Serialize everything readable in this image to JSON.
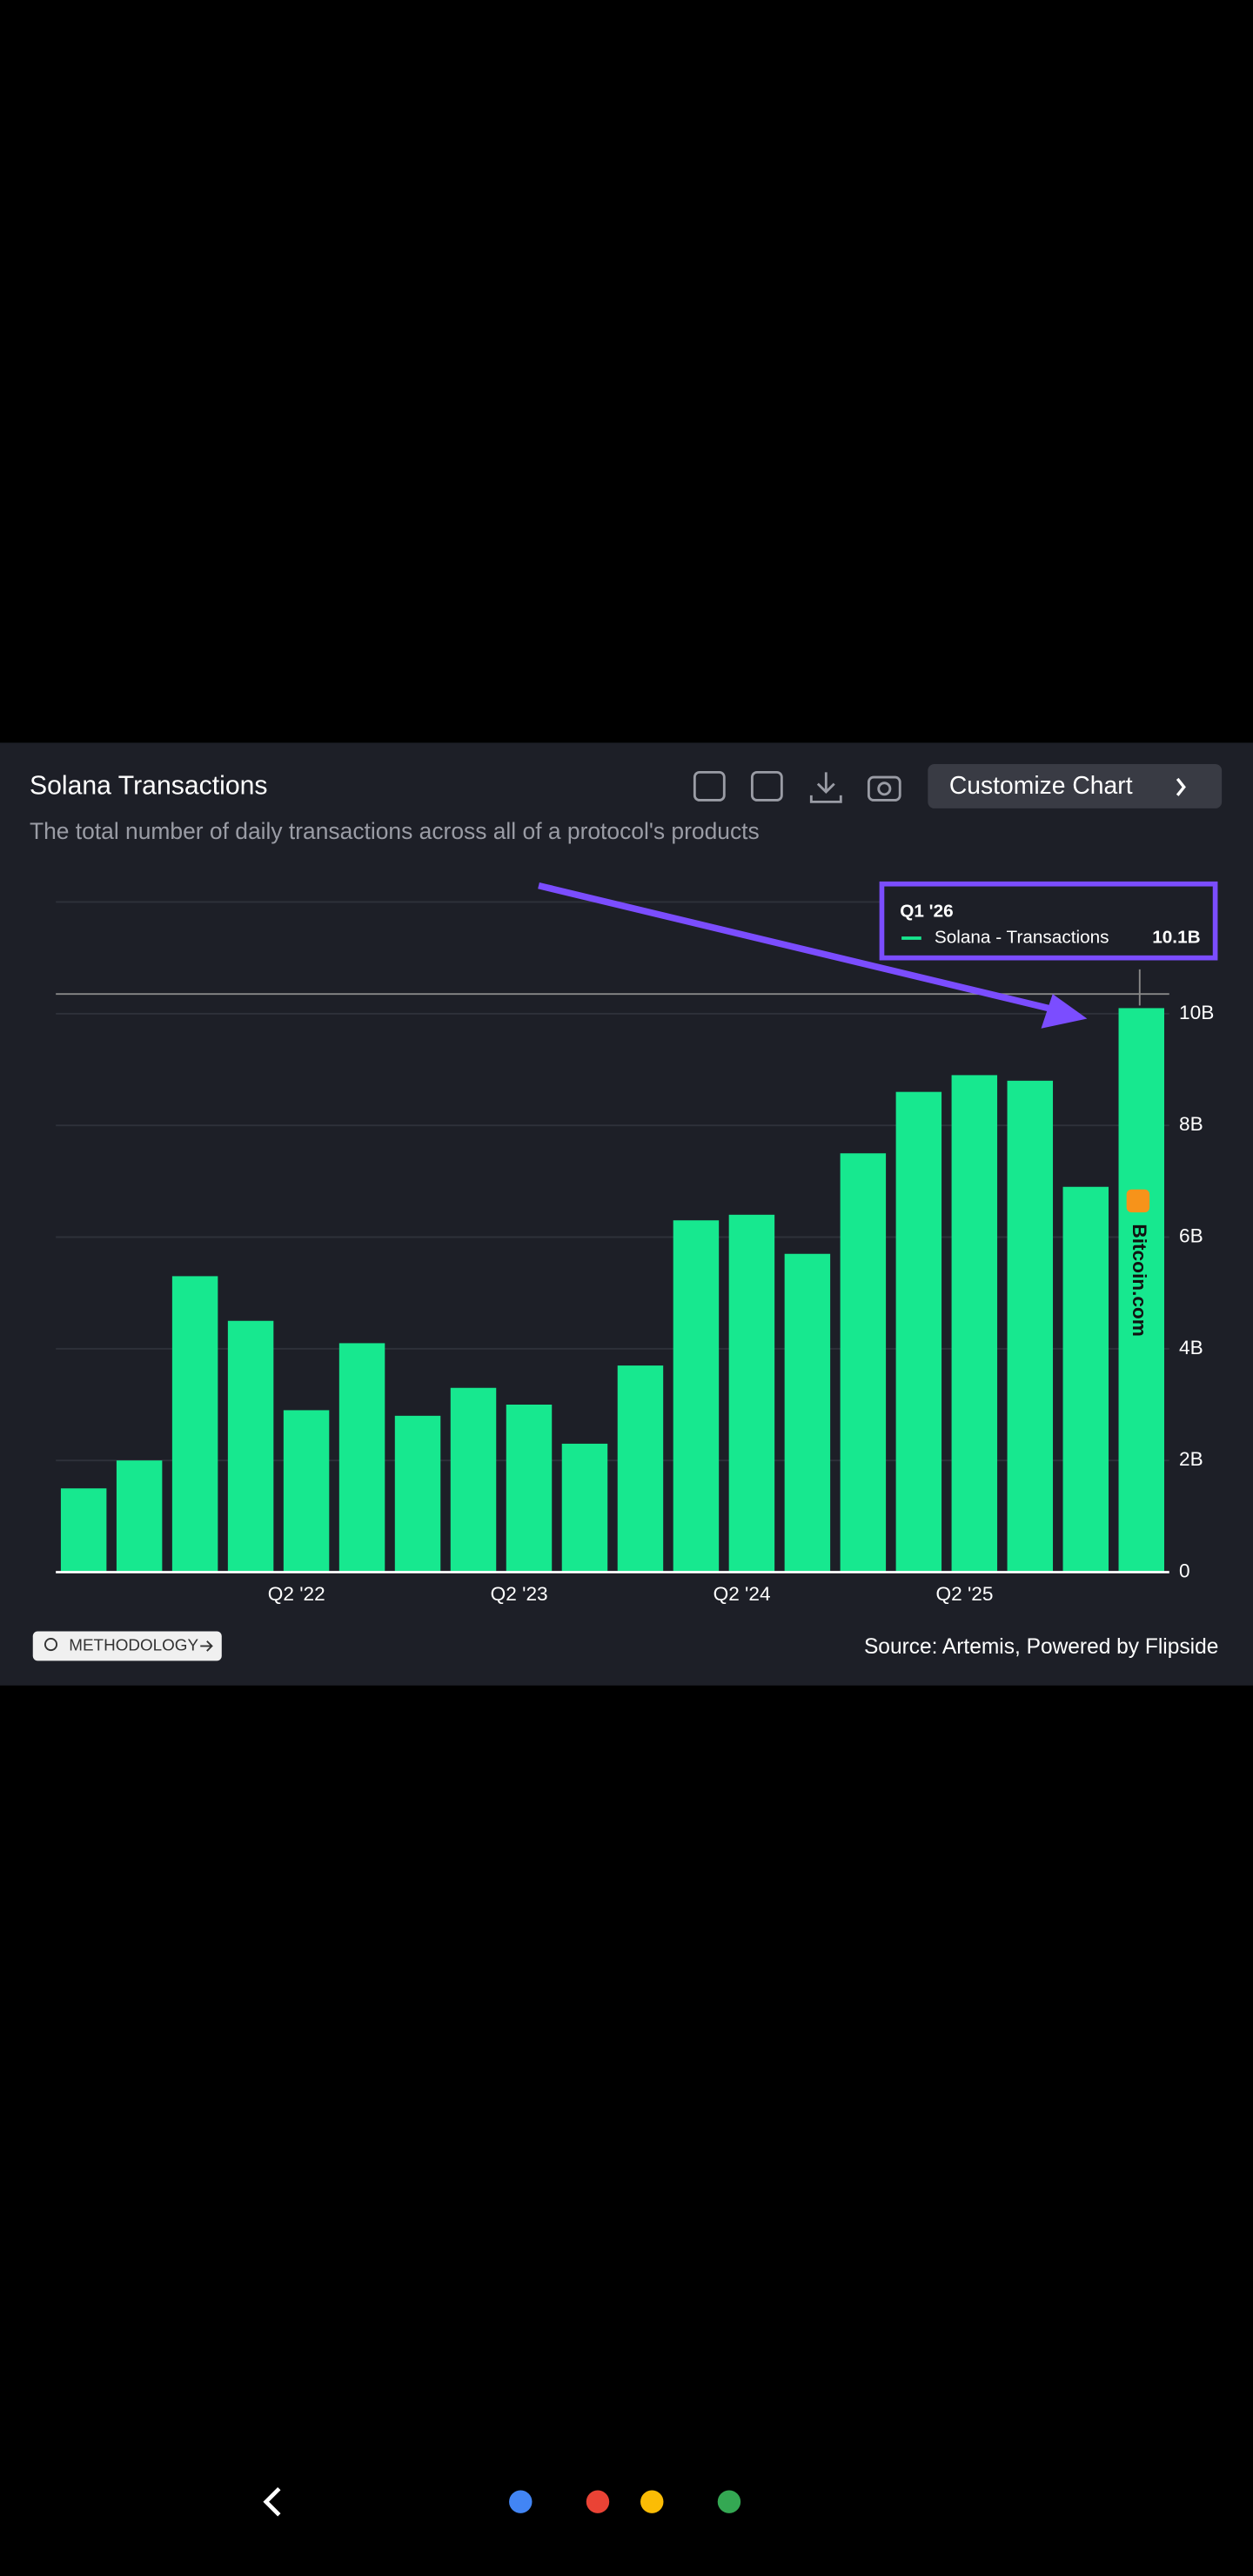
{
  "chart_data": {
    "type": "bar",
    "title": "Solana Transactions",
    "subtitle": "The total number of daily transactions across all of a protocol's products",
    "categories": [
      null,
      null,
      null,
      null,
      "Q2 '22",
      null,
      null,
      null,
      "Q2 '23",
      null,
      null,
      null,
      "Q2 '24",
      null,
      null,
      null,
      "Q2 '25",
      null,
      null,
      null
    ],
    "series": [
      {
        "name": "Solana - Transactions",
        "color": "#17e88f",
        "values": [
          1.5,
          2.0,
          5.3,
          4.5,
          2.9,
          4.1,
          2.8,
          3.3,
          3.0,
          2.3,
          3.7,
          6.3,
          6.4,
          5.7,
          7.5,
          8.6,
          8.9,
          8.8,
          6.9,
          10.1
        ]
      }
    ],
    "ylim": [
      0,
      12
    ],
    "yticks": [
      0,
      {
        "value": 2,
        "label": "2B"
      },
      {
        "value": 4,
        "label": "4B"
      },
      {
        "value": 6,
        "label": "6B"
      },
      {
        "value": 8,
        "label": "8B"
      },
      {
        "value": 10,
        "label": "10B"
      }
    ],
    "grid": true,
    "tooltip": {
      "title": "Q1 '26",
      "label": "10.1B"
    },
    "source": "Source: Artemis, Powered by Flipside"
  },
  "ui": {
    "button": "Customize Chart",
    "methodology": "METHODOLOGY",
    "watermark": "Bitcoin.com"
  }
}
